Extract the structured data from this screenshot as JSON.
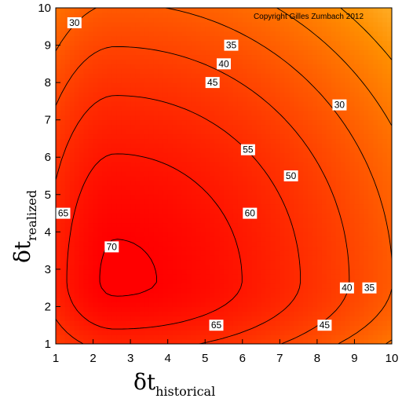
{
  "chart_data": {
    "type": "heatmap",
    "subtype": "filled-contour",
    "copyright": "Copyright Gilles Zumbach 2012",
    "xaxis": {
      "symbol": "δt",
      "subscript": "historical",
      "range": [
        1,
        10
      ],
      "ticks": [
        "1",
        "2",
        "3",
        "4",
        "5",
        "6",
        "7",
        "8",
        "9",
        "10"
      ]
    },
    "yaxis": {
      "symbol": "δt",
      "subscript": "realized",
      "range": [
        1,
        10
      ],
      "ticks": [
        "1",
        "2",
        "3",
        "4",
        "5",
        "6",
        "7",
        "8",
        "9",
        "10"
      ]
    },
    "peak": {
      "x": 2.6,
      "y": 2.7,
      "value": 71
    },
    "colorscale": {
      "low": "#ffff66",
      "high": "#ff0000",
      "range": [
        25,
        70
      ]
    },
    "contour_levels": [
      30,
      35,
      40,
      45,
      50,
      55,
      60,
      65,
      70
    ],
    "contour_labels": [
      {
        "text": "30",
        "x": 1.5,
        "y": 9.6
      },
      {
        "text": "35",
        "x": 5.7,
        "y": 9.0
      },
      {
        "text": "40",
        "x": 5.5,
        "y": 8.5
      },
      {
        "text": "45",
        "x": 5.2,
        "y": 8.0
      },
      {
        "text": "30",
        "x": 8.6,
        "y": 7.4
      },
      {
        "text": "55",
        "x": 6.15,
        "y": 6.2
      },
      {
        "text": "50",
        "x": 7.3,
        "y": 5.5
      },
      {
        "text": "60",
        "x": 6.2,
        "y": 4.5
      },
      {
        "text": "65",
        "x": 1.2,
        "y": 4.5
      },
      {
        "text": "70",
        "x": 2.5,
        "y": 3.6
      },
      {
        "text": "40",
        "x": 8.8,
        "y": 2.5
      },
      {
        "text": "35",
        "x": 9.4,
        "y": 2.5
      },
      {
        "text": "45",
        "x": 8.2,
        "y": 1.5
      },
      {
        "text": "65",
        "x": 5.3,
        "y": 1.5
      }
    ]
  }
}
